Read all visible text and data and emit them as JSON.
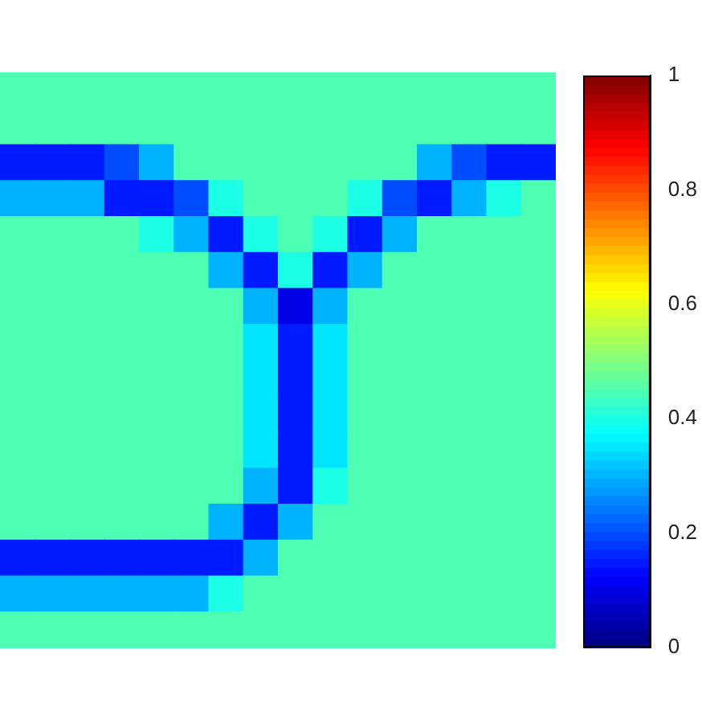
{
  "chart_data": {
    "type": "heatmap",
    "tick_labels": false,
    "categories": [
      null,
      null,
      null,
      null,
      null,
      null,
      null,
      null,
      null,
      null,
      null,
      null,
      null,
      null,
      null,
      null
    ],
    "y_categories": [
      null,
      null,
      null,
      null,
      null,
      null,
      null,
      null,
      null,
      null,
      null,
      null,
      null,
      null,
      null,
      null
    ],
    "cells": [
      [
        0.45,
        0.45,
        0.45,
        0.45,
        0.45,
        0.45,
        0.45,
        0.45,
        0.45,
        0.45,
        0.45,
        0.45,
        0.45,
        0.45,
        0.45,
        0.45
      ],
      [
        0.45,
        0.45,
        0.45,
        0.45,
        0.45,
        0.45,
        0.45,
        0.45,
        0.45,
        0.45,
        0.45,
        0.45,
        0.45,
        0.45,
        0.45,
        0.45
      ],
      [
        0.15,
        0.15,
        0.15,
        0.2,
        0.3,
        0.45,
        0.45,
        0.45,
        0.45,
        0.45,
        0.45,
        0.45,
        0.3,
        0.2,
        0.15,
        0.15
      ],
      [
        0.3,
        0.3,
        0.3,
        0.15,
        0.15,
        0.2,
        0.4,
        0.45,
        0.45,
        0.45,
        0.4,
        0.2,
        0.15,
        0.3,
        0.4,
        0.45
      ],
      [
        0.45,
        0.45,
        0.45,
        0.45,
        0.4,
        0.3,
        0.15,
        0.4,
        0.45,
        0.4,
        0.15,
        0.3,
        0.45,
        0.45,
        0.45,
        0.45
      ],
      [
        0.45,
        0.45,
        0.45,
        0.45,
        0.45,
        0.45,
        0.3,
        0.15,
        0.4,
        0.15,
        0.3,
        0.45,
        0.45,
        0.45,
        0.45,
        0.45
      ],
      [
        0.45,
        0.45,
        0.45,
        0.45,
        0.45,
        0.45,
        0.45,
        0.3,
        0.1,
        0.3,
        0.45,
        0.45,
        0.45,
        0.45,
        0.45,
        0.45
      ],
      [
        0.45,
        0.45,
        0.45,
        0.45,
        0.45,
        0.45,
        0.45,
        0.35,
        0.15,
        0.35,
        0.45,
        0.45,
        0.45,
        0.45,
        0.45,
        0.45
      ],
      [
        0.45,
        0.45,
        0.45,
        0.45,
        0.45,
        0.45,
        0.45,
        0.35,
        0.15,
        0.35,
        0.45,
        0.45,
        0.45,
        0.45,
        0.45,
        0.45
      ],
      [
        0.45,
        0.45,
        0.45,
        0.45,
        0.45,
        0.45,
        0.45,
        0.35,
        0.15,
        0.35,
        0.45,
        0.45,
        0.45,
        0.45,
        0.45,
        0.45
      ],
      [
        0.45,
        0.45,
        0.45,
        0.45,
        0.45,
        0.45,
        0.45,
        0.35,
        0.15,
        0.35,
        0.45,
        0.45,
        0.45,
        0.45,
        0.45,
        0.45
      ],
      [
        0.45,
        0.45,
        0.45,
        0.45,
        0.45,
        0.45,
        0.45,
        0.3,
        0.15,
        0.4,
        0.45,
        0.45,
        0.45,
        0.45,
        0.45,
        0.45
      ],
      [
        0.45,
        0.45,
        0.45,
        0.45,
        0.45,
        0.45,
        0.3,
        0.15,
        0.3,
        0.45,
        0.45,
        0.45,
        0.45,
        0.45,
        0.45,
        0.45
      ],
      [
        0.15,
        0.15,
        0.15,
        0.15,
        0.15,
        0.15,
        0.15,
        0.3,
        0.45,
        0.45,
        0.45,
        0.45,
        0.45,
        0.45,
        0.45,
        0.45
      ],
      [
        0.3,
        0.3,
        0.3,
        0.3,
        0.3,
        0.3,
        0.4,
        0.45,
        0.45,
        0.45,
        0.45,
        0.45,
        0.45,
        0.45,
        0.45,
        0.45
      ],
      [
        0.45,
        0.45,
        0.45,
        0.45,
        0.45,
        0.45,
        0.45,
        0.45,
        0.45,
        0.45,
        0.45,
        0.45,
        0.45,
        0.45,
        0.45,
        0.45
      ]
    ],
    "clim": [
      0,
      1
    ],
    "cticks": [
      0,
      0.2,
      0.4,
      0.6,
      0.8,
      1
    ]
  }
}
